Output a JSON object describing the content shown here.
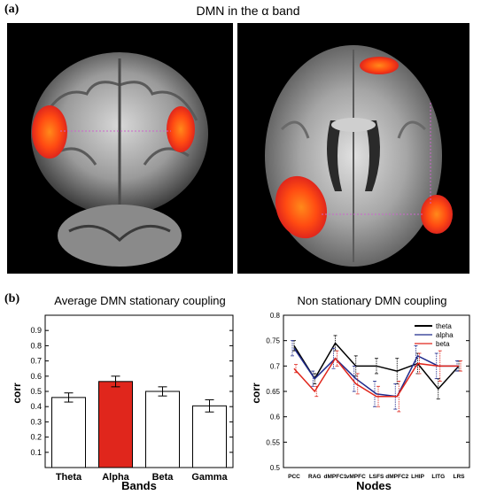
{
  "panel_a": {
    "label": "(a)",
    "title": "DMN in the α band"
  },
  "panel_b": {
    "label": "(b)"
  },
  "chart_data": [
    {
      "type": "bar",
      "title": "Average DMN stationary coupling",
      "xlabel": "Bands",
      "ylabel": "corr",
      "categories": [
        "Theta",
        "Alpha",
        "Beta",
        "Gamma"
      ],
      "values": [
        0.46,
        0.565,
        0.5,
        0.405
      ],
      "errors": [
        0.03,
        0.035,
        0.03,
        0.04
      ],
      "highlight_color": "#e0261c",
      "highlight_index": 1,
      "ylim": [
        0,
        1
      ],
      "yticks": [
        0.1,
        0.2,
        0.3,
        0.4,
        0.5,
        0.6,
        0.7,
        0.8,
        0.9
      ]
    },
    {
      "type": "line",
      "title": "Non stationary DMN coupling",
      "xlabel": "Nodes",
      "ylabel": "corr",
      "categories": [
        "PCC",
        "RAG",
        "dMPFC1",
        "vMPFC",
        "LSFS",
        "dMPFC2",
        "LHIP",
        "LITG",
        "LRS"
      ],
      "ylim": [
        0.5,
        0.8
      ],
      "yticks": [
        0.5,
        0.55,
        0.6,
        0.65,
        0.7,
        0.75,
        0.8
      ],
      "legend_position": "top-right",
      "series": [
        {
          "name": "theta",
          "color": "#000000",
          "values": [
            0.74,
            0.675,
            0.745,
            0.7,
            0.7,
            0.69,
            0.705,
            0.655,
            0.7
          ],
          "errors": [
            0.01,
            0.01,
            0.015,
            0.02,
            0.015,
            0.025,
            0.02,
            0.02,
            0.01
          ]
        },
        {
          "name": "alpha",
          "color": "#1f2a8c",
          "values": [
            0.735,
            0.675,
            0.715,
            0.675,
            0.645,
            0.64,
            0.72,
            0.7,
            0.7
          ],
          "errors": [
            0.015,
            0.015,
            0.02,
            0.025,
            0.025,
            0.025,
            0.02,
            0.025,
            0.01
          ]
        },
        {
          "name": "beta",
          "color": "#e0261c",
          "values": [
            0.695,
            0.65,
            0.715,
            0.665,
            0.64,
            0.64,
            0.705,
            0.7,
            0.7
          ],
          "errors": [
            0.008,
            0.01,
            0.015,
            0.02,
            0.02,
            0.03,
            0.02,
            0.03,
            0.01
          ]
        }
      ]
    }
  ]
}
